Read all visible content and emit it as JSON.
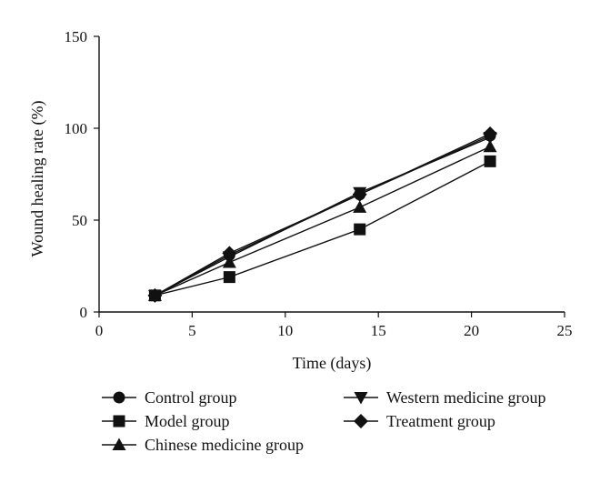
{
  "chart_data": {
    "type": "line",
    "title": "",
    "xlabel": "Time (days)",
    "ylabel": "Wound healing rate (%)",
    "xlim": [
      0,
      25
    ],
    "ylim": [
      0,
      150
    ],
    "xticks": [
      0,
      5,
      10,
      15,
      20,
      25
    ],
    "yticks": [
      0,
      50,
      100,
      150
    ],
    "grid": false,
    "x": [
      3,
      7,
      14,
      21
    ],
    "series": [
      {
        "name": "Control group",
        "marker": "circle",
        "values": [
          9,
          31,
          64,
          96
        ]
      },
      {
        "name": "Model group",
        "marker": "square",
        "values": [
          9,
          19,
          45,
          82
        ]
      },
      {
        "name": "Chinese medicine group",
        "marker": "triangle-up",
        "values": [
          9,
          27,
          57,
          90
        ]
      },
      {
        "name": "Western medicine group",
        "marker": "triangle-down",
        "values": [
          9,
          30,
          65,
          95
        ]
      },
      {
        "name": "Treatment group",
        "marker": "diamond",
        "values": [
          9,
          32,
          64,
          97
        ]
      }
    ],
    "legend_position": "bottom",
    "colors": {
      "ink": "#111111",
      "background": "#ffffff"
    }
  }
}
